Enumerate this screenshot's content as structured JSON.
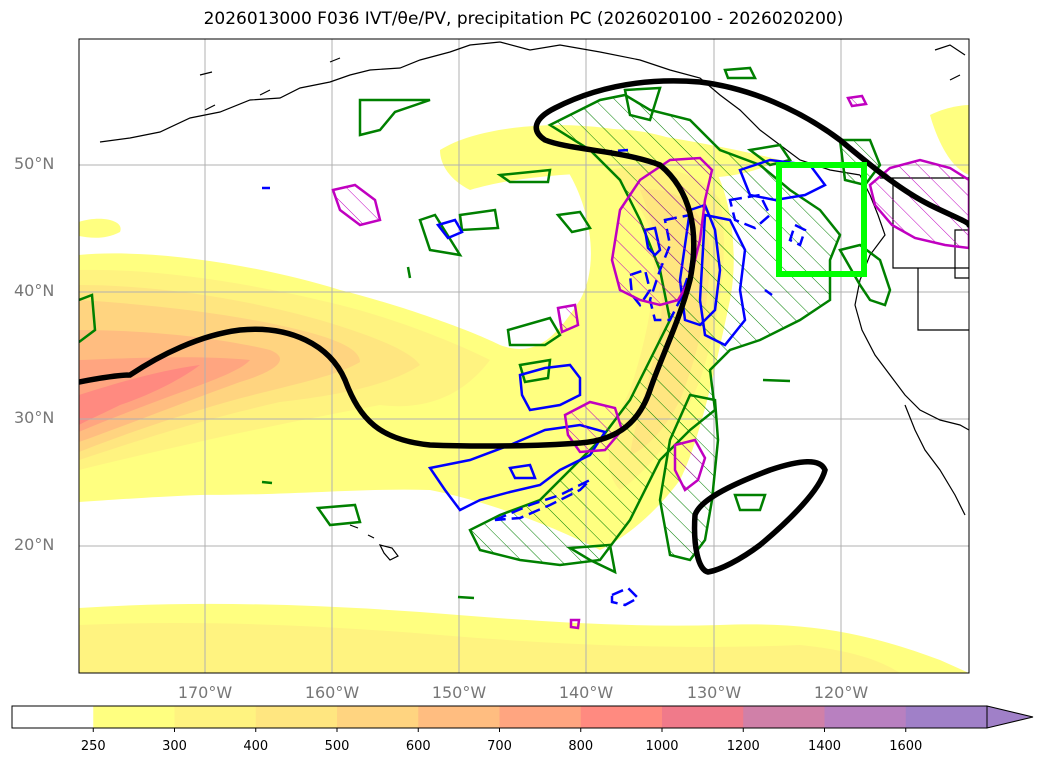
{
  "title": "2026013000 F036 IVT/θe/PV, precipitation PC (2026020100 - 2026020200)",
  "lat_labels": [
    "50°N",
    "40°N",
    "30°N",
    "20°N"
  ],
  "lon_labels": [
    "170°W",
    "160°W",
    "150°W",
    "140°W",
    "130°W",
    "120°W"
  ],
  "colorbar": {
    "ticks": [
      "250",
      "300",
      "400",
      "500",
      "600",
      "700",
      "800",
      "1000",
      "1200",
      "1400",
      "1600"
    ],
    "colors": [
      "#ffffff",
      "#ffff80",
      "#fff380",
      "#ffe680",
      "#ffd480",
      "#ffbd80",
      "#ffa580",
      "#ff8a80",
      "#f07a8a",
      "#d080a8",
      "#b880c0",
      "#a080c8"
    ]
  },
  "colors": {
    "pv_contour": "#000000",
    "theta_e_positive": "#008000",
    "theta_e_negative": "#0000ff",
    "precip_contour": "#c000c0",
    "target_box": "#00ff00"
  }
}
